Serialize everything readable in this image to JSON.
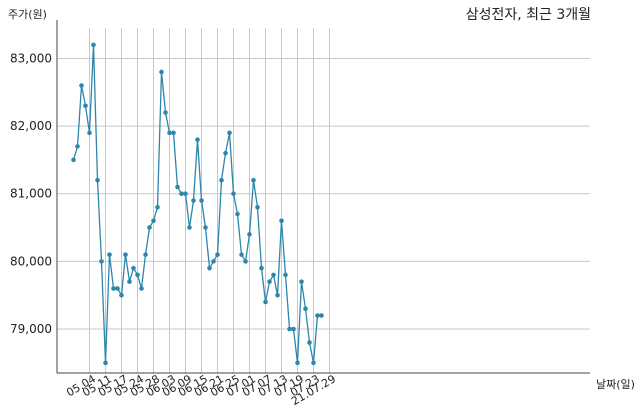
{
  "chart_data": {
    "type": "line",
    "title": "삼성전자, 최근 3개월",
    "ylabel": "주가(원)",
    "xlabel": "날짜(일)",
    "ylim": [
      78350,
      83450
    ],
    "yticks": [
      79000,
      80000,
      81000,
      82000,
      83000
    ],
    "ytick_labels": [
      "79,000",
      "80,000",
      "81,000",
      "82,000",
      "83,000"
    ],
    "xtick_labels": [
      "05.04",
      "05.11",
      "05.17",
      "05.24",
      "05.28",
      "06.03",
      "06.09",
      "06.15",
      "06.21",
      "06.25",
      "07.01",
      "07.07",
      "07.13",
      "07.19",
      "07.23",
      "21.07.29"
    ],
    "xtick_index": [
      4,
      8,
      12,
      16,
      20,
      24,
      28,
      32,
      36,
      40,
      44,
      48,
      52,
      56,
      60,
      64
    ],
    "grid": true,
    "line_color": "#2e86ab",
    "series": [
      {
        "values": [
          81500,
          81700,
          82600,
          82300,
          81900,
          83200,
          81200,
          80000,
          78500,
          80100,
          79600,
          79600,
          79500,
          80100,
          79700,
          79900,
          79800,
          79600,
          80100,
          80500,
          80600,
          80800,
          82800,
          82200,
          81900,
          81900,
          81100,
          81000,
          81000,
          80500,
          80900,
          81800,
          80900,
          80500,
          79900,
          80000,
          80100,
          81200,
          81600,
          81900,
          81000,
          80700,
          80100,
          80000,
          80400,
          81200,
          80800,
          79900,
          79400,
          79700,
          79800,
          79500,
          80600,
          79800,
          79000,
          79000,
          78500,
          79700,
          79300,
          78800,
          78500,
          79200,
          79200
        ]
      }
    ]
  }
}
